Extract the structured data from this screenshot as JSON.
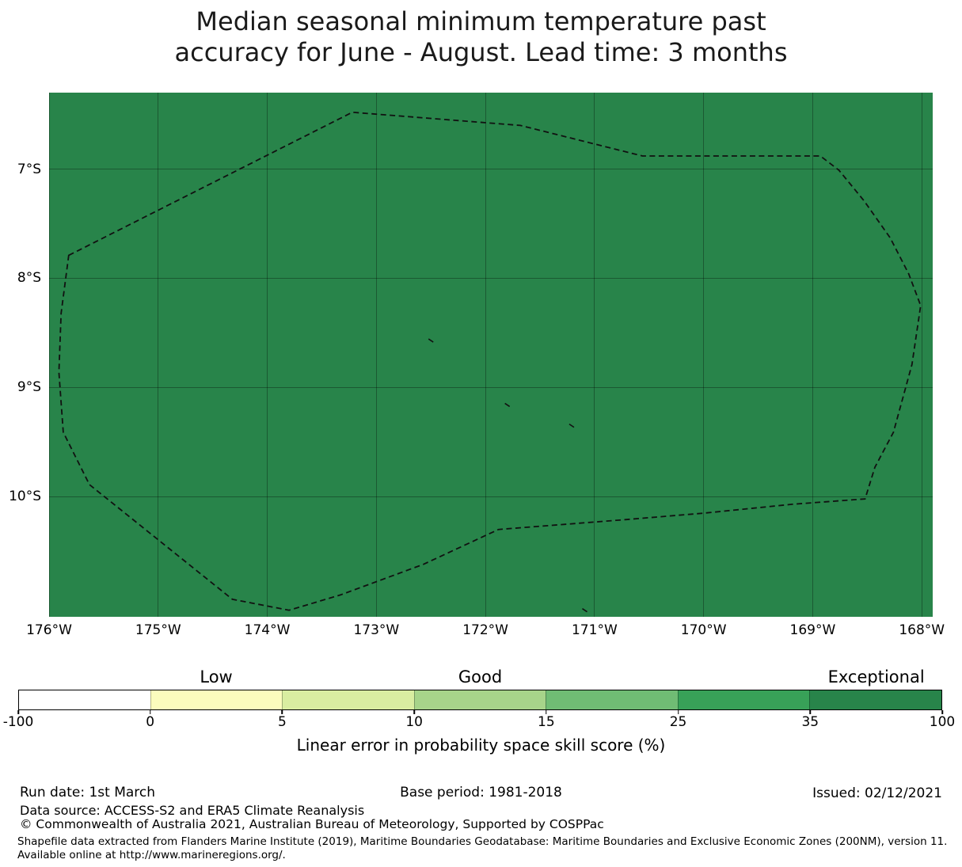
{
  "title": {
    "line1": "Median seasonal minimum temperature past",
    "line2": "accuracy for June - August. Lead time: 3 months"
  },
  "chart_data": {
    "type": "map",
    "title": "Median seasonal minimum temperature past accuracy for June - August. Lead time: 3 months",
    "colorbar_label": "Linear error in probability space skill score (%)",
    "grid": true,
    "map_axes": {
      "lon_left_W": 176.0,
      "lon_right_W": 167.9,
      "lat_top_S": 6.3,
      "lat_bottom_S": 11.1
    },
    "x_ticks": [
      {
        "label": "176°W",
        "lonW": 176
      },
      {
        "label": "175°W",
        "lonW": 175
      },
      {
        "label": "174°W",
        "lonW": 174
      },
      {
        "label": "173°W",
        "lonW": 173
      },
      {
        "label": "172°W",
        "lonW": 172
      },
      {
        "label": "171°W",
        "lonW": 171
      },
      {
        "label": "170°W",
        "lonW": 170
      },
      {
        "label": "169°W",
        "lonW": 169
      },
      {
        "label": "168°W",
        "lonW": 168
      }
    ],
    "y_ticks": [
      {
        "label": "7°S",
        "latS": 7
      },
      {
        "label": "8°S",
        "latS": 8
      },
      {
        "label": "9°S",
        "latS": 9
      },
      {
        "label": "10°S",
        "latS": 10
      }
    ],
    "region_fill_color": "#28844a",
    "region_skill_category": "Exceptional (35-100)",
    "eez_boundary_lonW_latS": [
      [
        175.82,
        7.79
      ],
      [
        173.22,
        6.48
      ],
      [
        171.68,
        6.6
      ],
      [
        170.56,
        6.88
      ],
      [
        168.93,
        6.88
      ],
      [
        168.76,
        7.01
      ],
      [
        168.53,
        7.29
      ],
      [
        168.29,
        7.63
      ],
      [
        168.12,
        7.96
      ],
      [
        168.01,
        8.25
      ],
      [
        168.09,
        8.79
      ],
      [
        168.26,
        9.41
      ],
      [
        168.43,
        9.73
      ],
      [
        168.52,
        10.02
      ],
      [
        169.19,
        10.07
      ],
      [
        169.99,
        10.15
      ],
      [
        170.72,
        10.21
      ],
      [
        171.88,
        10.3
      ],
      [
        172.57,
        10.62
      ],
      [
        173.33,
        10.9
      ],
      [
        173.8,
        11.04
      ],
      [
        174.32,
        10.94
      ],
      [
        175.63,
        9.89
      ],
      [
        175.87,
        9.41
      ],
      [
        175.91,
        8.86
      ],
      [
        175.89,
        8.32
      ]
    ],
    "islands_lonW_latS": [
      [
        172.5,
        8.57
      ],
      [
        171.8,
        9.16
      ],
      [
        171.21,
        9.35
      ],
      [
        171.09,
        11.04
      ]
    ],
    "colorbar": {
      "boundaries": [
        -100,
        0,
        5,
        10,
        15,
        25,
        35,
        100
      ],
      "segment_colors": [
        "#ffffff",
        "#fbfcbd",
        "#d9eda1",
        "#a7d48a",
        "#70bc74",
        "#38a158",
        "#28844a"
      ],
      "category_labels": [
        {
          "label": "Low",
          "segment_index": 1
        },
        {
          "label": "Good",
          "segment_index": 3
        },
        {
          "label": "Exceptional",
          "segment_index": 6
        }
      ]
    }
  },
  "footer": {
    "run_date": "Run date: 1st March",
    "base_period": "Base period: 1981-2018",
    "issued": "Issued: 02/12/2021",
    "data_source": "Data source: ACCESS-S2 and ERA5 Climate Reanalysis",
    "copyright": "© Commonwealth of Australia 2021, Australian Bureau of Meteorology, Supported by COSPPac",
    "shapefile_note": "Shapefile data extracted from Flanders Marine Institute (2019), Maritime Boundaries Geodatabase: Maritime Boundaries and Exclusive Economic Zones (200NM), version 11. Available online at http://www.marineregions.org/."
  },
  "colors": {
    "boundary_stroke": "#111111",
    "grid_line": "rgba(0,0,0,0.32)",
    "background": "#ffffff"
  }
}
